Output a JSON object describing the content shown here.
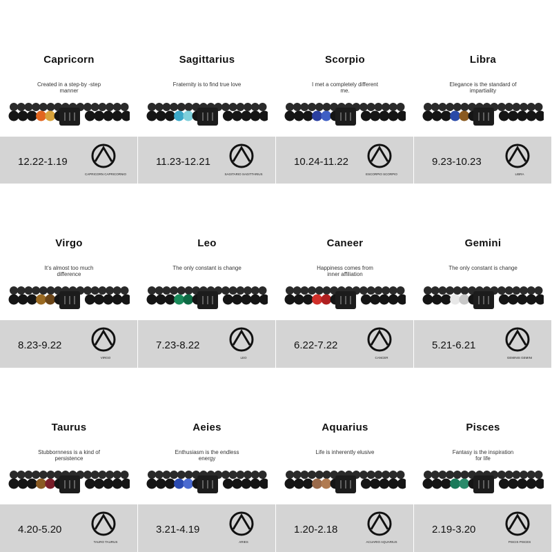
{
  "signs": [
    {
      "name": "Capricorn",
      "tagline": "Created in a step-by -step manner",
      "dates": "12.22-1.19",
      "sign_label": "CAPRICORN CAPRICORNIO",
      "accent_beads": [
        "#e2661f",
        "#d8a23a"
      ]
    },
    {
      "name": "Sagittarius",
      "tagline": "Fraternity is to find true love",
      "dates": "11.23-12.21",
      "sign_label": "SAGITARIO SAGITTARIUS",
      "accent_beads": [
        "#3aa8c8",
        "#7fd0dc"
      ]
    },
    {
      "name": "Scorpio",
      "tagline": "I met a completely different me.",
      "dates": "10.24-11.22",
      "sign_label": "ESCORPIO SCORPIO",
      "accent_beads": [
        "#2a3fa0",
        "#3f5fc4"
      ]
    },
    {
      "name": "Libra",
      "tagline": "Elegance is the standard of impartiality",
      "dates": "9.23-10.23",
      "sign_label": "LIBRA",
      "accent_beads": [
        "#2a4aa8",
        "#8a5a20"
      ]
    },
    {
      "name": "Virgo",
      "tagline": "It’s almost too much difference",
      "dates": "8.23-9.22",
      "sign_label": "VIRGO",
      "accent_beads": [
        "#9a6a22",
        "#6b4518"
      ]
    },
    {
      "name": "Leo",
      "tagline": "The only constant is change",
      "dates": "7.23-8.22",
      "sign_label": "LEO",
      "accent_beads": [
        "#1a8a5a",
        "#0e6a44"
      ]
    },
    {
      "name": "Caneer",
      "tagline": "Happiness comes from inner affiliation",
      "dates": "6.22-7.22",
      "sign_label": "CANCER",
      "accent_beads": [
        "#d0302a",
        "#b02020"
      ]
    },
    {
      "name": "Gemini",
      "tagline": "The only constant is change",
      "dates": "5.21-6.21",
      "sign_label": "GEMINIS GEMINI",
      "accent_beads": [
        "#e8e8e8",
        "#c8c8c8"
      ]
    },
    {
      "name": "Taurus",
      "tagline": "Stubbornness is a kind of persistence",
      "dates": "4.20-5.20",
      "sign_label": "TAURO TAURUS",
      "accent_beads": [
        "#8a5a22",
        "#7a1e2a"
      ]
    },
    {
      "name": "Aeies",
      "tagline": "Enthusiasm is the endless energy",
      "dates": "3.21-4.19",
      "sign_label": "ARIES",
      "accent_beads": [
        "#2a4ab0",
        "#4a6ad0"
      ]
    },
    {
      "name": "Aquarius",
      "tagline": "Life is inherently elusive",
      "dates": "1.20-2.18",
      "sign_label": "ACUARIO AQUARIUS",
      "accent_beads": [
        "#9a6a4a",
        "#b07a50"
      ]
    },
    {
      "name": "Pisces",
      "tagline": "Fantasy is the inspiration for life",
      "dates": "2.19-3.20",
      "sign_label": "PISCIS PISCES",
      "accent_beads": [
        "#1a7a5a",
        "#2a8a6a"
      ]
    }
  ],
  "colors": {
    "band": "#d4d4d4",
    "bead": "#151515"
  }
}
